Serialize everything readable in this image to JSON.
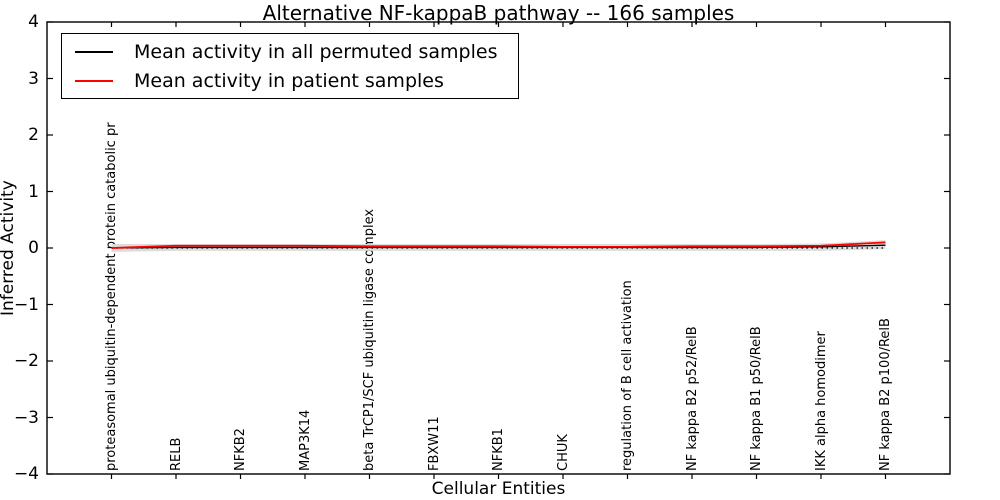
{
  "title": "Alternative NF-kappaB pathway -- 166 samples",
  "legend": {
    "position": "upper left",
    "items": [
      {
        "label": "Mean activity in all permuted samples",
        "color": "#000000"
      },
      {
        "label": "Mean activity in patient samples",
        "color": "#ff0000"
      }
    ]
  },
  "colors": {
    "axes": "#000000",
    "background": "#ffffff",
    "band": "#dcdcdc",
    "patient_line": "#ff0000",
    "permuted_line": "#000000"
  },
  "chart_data": {
    "type": "line",
    "title": "Alternative NF-kappaB pathway -- 166 samples",
    "xlabel": "Cellular Entities",
    "ylabel": "Inferred Activity",
    "ylim": [
      -4,
      4
    ],
    "yticks": [
      4,
      3,
      2,
      1,
      0,
      -1,
      -2,
      -3,
      -4
    ],
    "grid": false,
    "legend_position": "upper left",
    "categories": [
      "proteasomal ubiquitin-dependent protein catabolic pr",
      "RELB",
      "NFKB2",
      "MAP3K14",
      "beta TrCP1/SCF ubiquitin ligase complex",
      "FBXW11",
      "NFKB1",
      "CHUK",
      "regulation of B cell activation",
      "NF kappa B2 p52/RelB",
      "NF kappa B1 p50/RelB",
      "IKK alpha homodimer",
      "NF kappa B2 p100/RelB"
    ],
    "series": [
      {
        "name": "Mean activity in all permuted samples",
        "color": "#000000",
        "style": "solid",
        "values": [
          0.0,
          0.01,
          0.01,
          0.01,
          0.01,
          0.01,
          0.01,
          0.01,
          0.01,
          0.01,
          0.01,
          0.02,
          0.05
        ]
      },
      {
        "name": "Mean activity in patient samples",
        "color": "#ff0000",
        "style": "solid",
        "values": [
          0.0,
          0.04,
          0.04,
          0.04,
          0.03,
          0.03,
          0.03,
          0.02,
          0.02,
          0.03,
          0.03,
          0.04,
          0.1
        ]
      },
      {
        "name": "zero baseline",
        "color": "#000000",
        "style": "dotted",
        "values": [
          0,
          0,
          0,
          0,
          0,
          0,
          0,
          0,
          0,
          0,
          0,
          0,
          0
        ]
      }
    ],
    "band": {
      "name": "permuted activity spread",
      "color": "#dcdcdc",
      "upper": [
        0.07,
        0.07,
        0.07,
        0.07,
        0.07,
        0.07,
        0.07,
        0.07,
        0.07,
        0.07,
        0.07,
        0.08,
        0.14
      ],
      "lower": [
        -0.07,
        -0.05,
        -0.05,
        -0.05,
        -0.05,
        -0.05,
        -0.05,
        -0.05,
        -0.05,
        -0.05,
        -0.05,
        -0.05,
        -0.02
      ]
    }
  }
}
